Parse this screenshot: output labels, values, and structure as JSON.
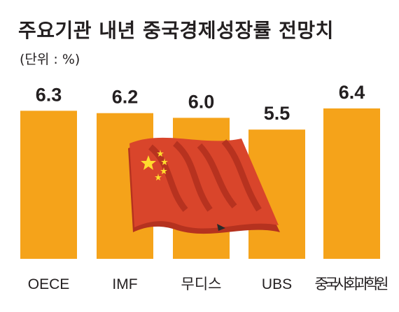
{
  "title": "주요기관 내년 중국경제성장률 전망치",
  "unit": "(단위 : %)",
  "colors": {
    "bar": "#f5a31a",
    "text": "#231f20",
    "flag_red": "#d9452b",
    "flag_star": "#ffdb2e"
  },
  "decoration": "china-flag-icon",
  "chart_data": {
    "type": "bar",
    "title": "주요기관 내년 중국경제성장률 전망치",
    "unit": "%",
    "categories": [
      "OECE",
      "IMF",
      "무디스",
      "UBS",
      "중국사회과학원"
    ],
    "values": [
      6.3,
      6.2,
      6.0,
      5.5,
      6.4
    ],
    "value_labels": [
      "6.3",
      "6.2",
      "6.0",
      "5.5",
      "6.4"
    ],
    "ylim": [
      0,
      6.4
    ],
    "grid": false,
    "legend": "none"
  }
}
